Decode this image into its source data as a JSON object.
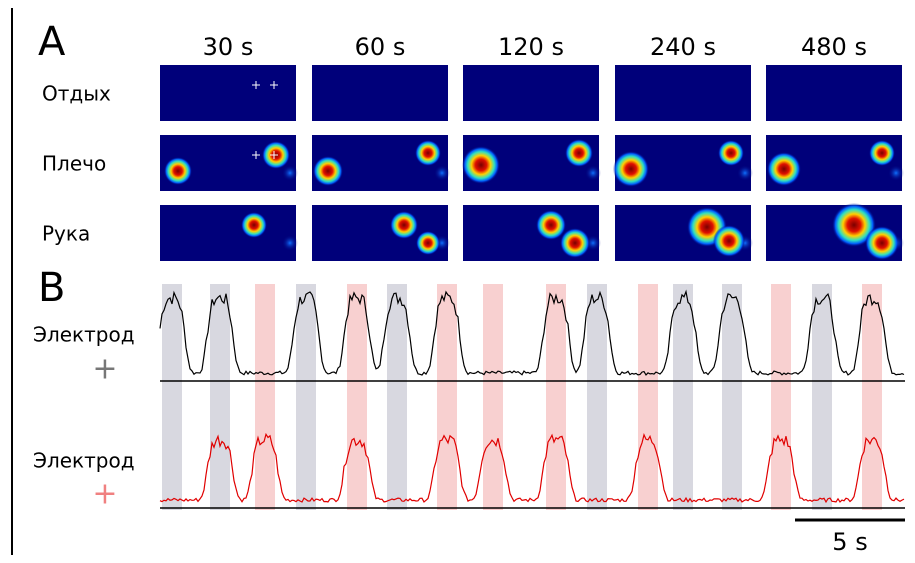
{
  "panel_a": {
    "label": "A",
    "columns": [
      "30 s",
      "60 s",
      "120 s",
      "240 s",
      "480 s"
    ],
    "rows": [
      "Отдых",
      "Плечо",
      "Рука"
    ]
  },
  "panel_b": {
    "label": "B",
    "traces": [
      {
        "label": "Электрод",
        "marker": "+"
      },
      {
        "label": "Электрод",
        "marker": "+"
      }
    ],
    "scale": "5 s"
  }
}
